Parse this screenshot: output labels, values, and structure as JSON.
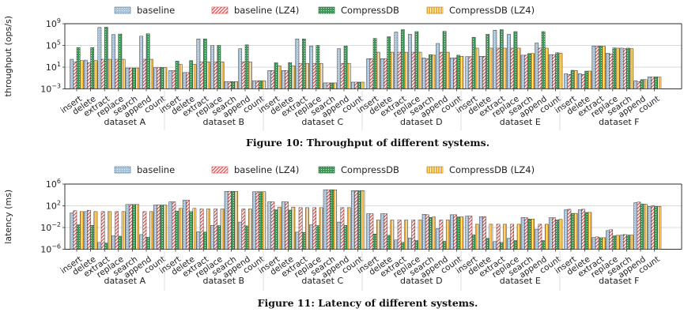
{
  "legend": [
    {
      "name": "baseline",
      "color": "#a9c4db",
      "edge": "#4a6f92",
      "hatch": "dots"
    },
    {
      "name": "baseline (LZ4)",
      "color": "#ffffff",
      "edge": "#d94a4a",
      "hatch": "diag"
    },
    {
      "name": "CompressDB",
      "color": "#3f9a5a",
      "edge": "#1e5a31",
      "hatch": "cross"
    },
    {
      "name": "CompressDB (LZ4)",
      "color": "#f3b13a",
      "edge": "#b07810",
      "hatch": "grid"
    }
  ],
  "chart_data": [
    {
      "type": "bar",
      "title": "Figure 10: Throughput of different systems.",
      "xlabel": "",
      "ylabel": "throughput (ops/s)",
      "yscale": "log",
      "ylim_exp": [
        -3,
        9
      ],
      "yticks": [
        {
          "exp": -3,
          "label": "10",
          "sup": "−3"
        },
        {
          "exp": 1,
          "label": "10",
          "sup": "1"
        },
        {
          "exp": 5,
          "label": "10",
          "sup": "5"
        },
        {
          "exp": 9,
          "label": "10",
          "sup": "9"
        }
      ],
      "grid": true,
      "legend_position": "top",
      "groups": [
        "dataset A",
        "dataset B",
        "dataset C",
        "dataset D",
        "dataset E",
        "dataset F"
      ],
      "categories": [
        "insert",
        "delete",
        "extract",
        "replace",
        "search",
        "append",
        "count"
      ],
      "value_format": "log10 of value",
      "series": [
        {
          "name": "baseline",
          "values": [
            [
              2.45,
              2.3,
              8.3,
              7.0,
              0.85,
              6.7,
              0.9
            ],
            [
              0.37,
              0.0,
              6.2,
              4.97,
              -1.66,
              4.4,
              -1.5
            ],
            [
              0.37,
              0.37,
              6.2,
              4.9,
              -1.9,
              4.4,
              -1.76
            ],
            [
              2.55,
              2.55,
              7.45,
              7.05,
              2.7,
              5.36,
              2.7
            ],
            [
              2.93,
              3.0,
              7.8,
              7.05,
              3.2,
              5.45,
              3.3
            ],
            [
              -0.2,
              -0.2,
              4.9,
              3.57,
              4.5,
              -1.5,
              -0.78
            ]
          ]
        },
        {
          "name": "baseline (LZ4)",
          "values": [
            [
              1.97,
              1.8,
              2.45,
              2.45,
              0.85,
              2.45,
              0.9
            ],
            [
              0.37,
              0.0,
              1.97,
              1.97,
              -1.66,
              1.97,
              -1.5
            ],
            [
              0.37,
              0.37,
              1.7,
              1.7,
              -1.9,
              1.7,
              -1.76
            ],
            [
              2.55,
              2.55,
              3.75,
              3.75,
              2.55,
              3.75,
              2.7
            ],
            [
              2.93,
              3.0,
              4.5,
              4.5,
              3.2,
              4.5,
              3.3
            ],
            [
              -0.35,
              -0.35,
              4.85,
              3.4,
              4.4,
              -1.66,
              -0.85
            ]
          ]
        },
        {
          "name": "CompressDB",
          "values": [
            [
              4.6,
              4.6,
              8.35,
              7.1,
              0.85,
              7.15,
              0.95
            ],
            [
              2.1,
              2.2,
              6.2,
              5.0,
              -1.66,
              5.1,
              -1.5
            ],
            [
              1.8,
              1.85,
              6.2,
              5.0,
              -1.9,
              4.9,
              -1.76
            ],
            [
              6.3,
              6.6,
              7.9,
              7.55,
              3.3,
              7.6,
              3.2
            ],
            [
              6.5,
              7.05,
              7.9,
              7.55,
              3.5,
              7.55,
              3.66
            ],
            [
              0.42,
              0.27,
              4.9,
              4.53,
              4.5,
              -1.3,
              -0.78
            ]
          ]
        },
        {
          "name": "CompressDB (LZ4)",
          "values": [
            [
              2.2,
              2.2,
              2.45,
              2.45,
              0.85,
              2.45,
              0.9
            ],
            [
              1.5,
              1.5,
              1.97,
              1.97,
              -1.66,
              1.97,
              -1.5
            ],
            [
              1.24,
              1.24,
              1.7,
              1.7,
              -1.9,
              1.7,
              -1.76
            ],
            [
              3.75,
              3.75,
              3.75,
              3.75,
              3.2,
              3.75,
              3.0
            ],
            [
              4.5,
              4.5,
              4.5,
              4.5,
              3.5,
              4.5,
              3.55
            ],
            [
              0.37,
              0.27,
              4.85,
              4.5,
              4.4,
              -1.3,
              -0.85
            ]
          ]
        }
      ]
    },
    {
      "type": "bar",
      "title": "Figure 11: Latency of different systems.",
      "xlabel": "",
      "ylabel": "latency (ms)",
      "yscale": "log",
      "ylim_exp": [
        -6,
        6
      ],
      "yticks": [
        {
          "exp": -6,
          "label": "10",
          "sup": "−6"
        },
        {
          "exp": -2,
          "label": "10",
          "sup": "−2"
        },
        {
          "exp": 2,
          "label": "10",
          "sup": "2"
        },
        {
          "exp": 6,
          "label": "10",
          "sup": "6"
        }
      ],
      "grid": true,
      "legend_position": "top",
      "groups": [
        "dataset A",
        "dataset B",
        "dataset C",
        "dataset D",
        "dataset E",
        "dataset F"
      ],
      "categories": [
        "insert",
        "delete",
        "extract",
        "replace",
        "search",
        "append",
        "count"
      ],
      "value_format": "log10 of value",
      "series": [
        {
          "name": "baseline",
          "values": [
            [
              0.69,
              0.93,
              -4.74,
              -3.53,
              2.24,
              -3.3,
              2.14
            ],
            [
              2.73,
              3.02,
              -2.8,
              -1.6,
              4.66,
              -1.0,
              4.58
            ],
            [
              2.73,
              2.73,
              -2.85,
              -1.5,
              4.95,
              -1.0,
              4.8
            ],
            [
              0.54,
              0.54,
              -4.3,
              -3.92,
              0.44,
              -2.2,
              0.35
            ],
            [
              0.1,
              0.0,
              -4.6,
              -4.0,
              -0.14,
              -2.3,
              -0.2
            ],
            [
              1.27,
              1.27,
              -3.83,
              -2.56,
              -3.39,
              2.58,
              1.9
            ]
          ]
        },
        {
          "name": "baseline (LZ4)",
          "values": [
            [
              1.08,
              1.17,
              0.93,
              0.93,
              2.24,
              0.93,
              2.14
            ],
            [
              2.73,
              3.02,
              1.42,
              1.42,
              4.66,
              1.42,
              4.58
            ],
            [
              2.73,
              2.73,
              1.66,
              1.66,
              4.95,
              1.66,
              4.8
            ],
            [
              0.54,
              0.54,
              -0.62,
              -0.62,
              0.35,
              -0.62,
              0.35
            ],
            [
              0.1,
              0.0,
              -1.4,
              -1.4,
              -0.2,
              -1.4,
              -0.2
            ],
            [
              1.36,
              1.36,
              -3.73,
              -2.41,
              -3.3,
              2.68,
              2.0
            ]
          ]
        },
        {
          "name": "CompressDB",
          "values": [
            [
              -1.5,
              -1.6,
              -4.87,
              -3.6,
              2.24,
              -3.8,
              2.14
            ],
            [
              1.03,
              0.93,
              -2.85,
              -1.65,
              4.66,
              -1.7,
              4.58
            ],
            [
              1.27,
              1.2,
              -2.9,
              -1.65,
              4.95,
              -1.6,
              4.8
            ],
            [
              -3.2,
              -3.44,
              -4.74,
              -4.4,
              -0.14,
              -4.55,
              -0.05
            ],
            [
              -3.35,
              -4.0,
              -4.74,
              -4.4,
              -0.43,
              -4.4,
              -0.62
            ],
            [
              0.6,
              0.78,
              -3.88,
              -3.54,
              -3.39,
              2.34,
              1.9
            ]
          ]
        },
        {
          "name": "CompressDB (LZ4)",
          "values": [
            [
              0.93,
              0.93,
              0.93,
              0.93,
              2.24,
              0.93,
              2.14
            ],
            [
              1.52,
              1.52,
              1.42,
              1.42,
              4.66,
              1.42,
              4.58
            ],
            [
              1.76,
              1.76,
              1.66,
              1.66,
              4.95,
              1.66,
              4.8
            ],
            [
              -0.62,
              -0.62,
              -0.62,
              -0.62,
              -0.05,
              -0.62,
              -0.05
            ],
            [
              -1.4,
              -1.4,
              -1.4,
              -1.4,
              -0.43,
              -1.4,
              -0.5
            ],
            [
              0.6,
              0.78,
              -3.88,
              -3.44,
              -3.39,
              2.29,
              1.9
            ]
          ]
        }
      ]
    }
  ]
}
